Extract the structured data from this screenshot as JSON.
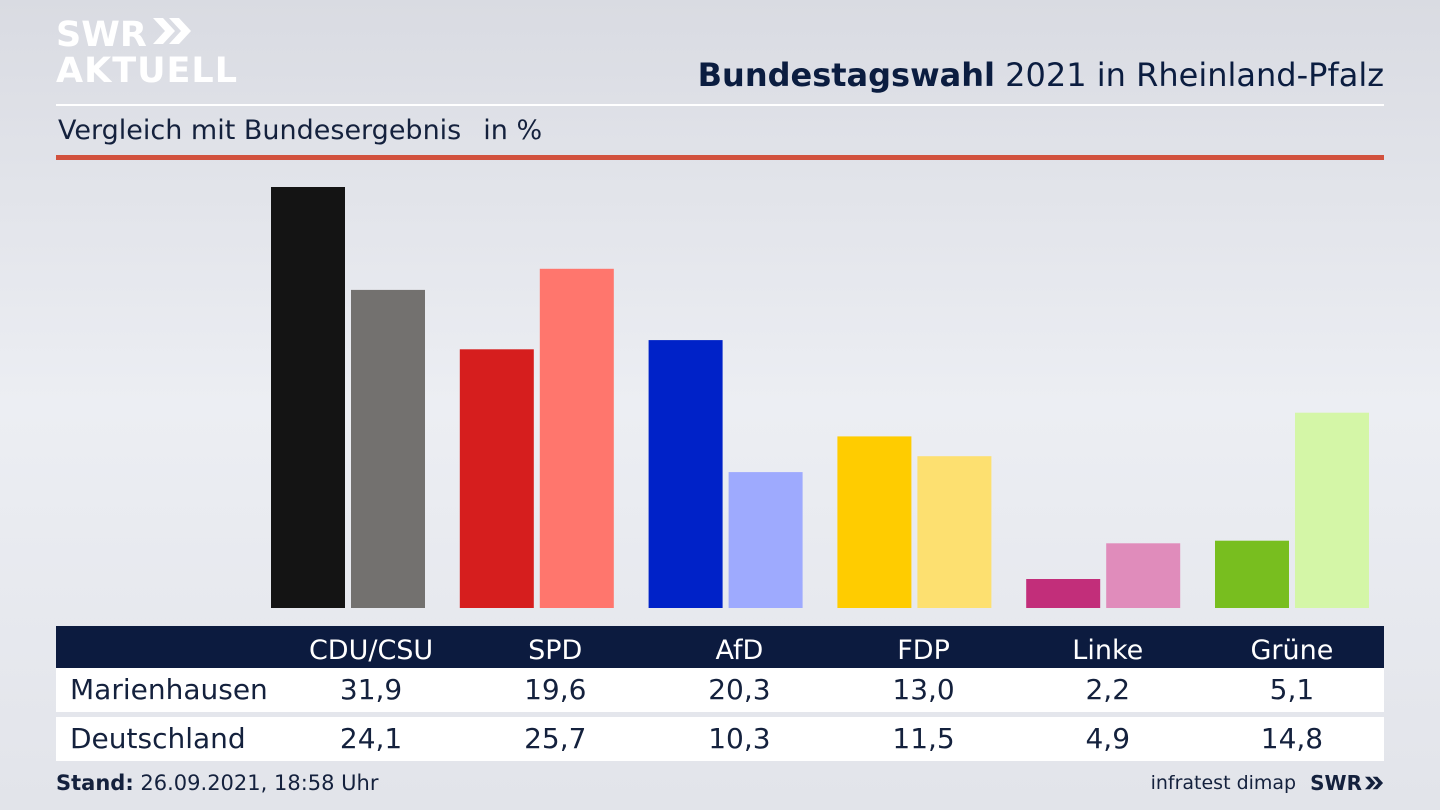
{
  "logo": {
    "line1": "SWR",
    "line2": "AKTUELL",
    "icon": "double-chevron-icon"
  },
  "header": {
    "title_bold": "Bundestagswahl",
    "title_rest": " 2021 in Rheinland-Pfalz"
  },
  "subtitle": {
    "text": "Vergleich mit Bundesergebnis",
    "unit": "in %"
  },
  "chart_data": {
    "type": "bar",
    "categories": [
      "CDU/CSU",
      "SPD",
      "AfD",
      "FDP",
      "Linke",
      "Grüne"
    ],
    "series": [
      {
        "name": "Marienhausen",
        "values": [
          31.9,
          19.6,
          20.3,
          13.0,
          2.2,
          5.1
        ],
        "colors": [
          "#141414",
          "#d61e1e",
          "#0022c8",
          "#ffcc00",
          "#c22e7a",
          "#78be1f"
        ]
      },
      {
        "name": "Deutschland",
        "values": [
          24.1,
          25.7,
          10.3,
          11.5,
          4.9,
          14.8
        ],
        "colors": [
          "#73716f",
          "#ff766d",
          "#9eaafe",
          "#fde070",
          "#e08cbb",
          "#d4f6a7"
        ]
      }
    ],
    "ylim": [
      0,
      32
    ],
    "grid": false,
    "legend": "table-below"
  },
  "table": {
    "headers": [
      "CDU/CSU",
      "SPD",
      "AfD",
      "FDP",
      "Linke",
      "Grüne"
    ],
    "rows": [
      {
        "label": "Marienhausen",
        "values": [
          "31,9",
          "19,6",
          "20,3",
          "13,0",
          "2,2",
          "5,1"
        ]
      },
      {
        "label": "Deutschland",
        "values": [
          "24,1",
          "25,7",
          "10,3",
          "11,5",
          "4,9",
          "14,8"
        ]
      }
    ]
  },
  "footer": {
    "stand_label": "Stand:",
    "stand_value": " 26.09.2021, 18:58 Uhr",
    "source": "infratest dimap",
    "brand": "SWR"
  },
  "colors": {
    "header_bg": "#0c1b3f",
    "accent_red": "#d2513d",
    "title": "#0b1d40"
  }
}
